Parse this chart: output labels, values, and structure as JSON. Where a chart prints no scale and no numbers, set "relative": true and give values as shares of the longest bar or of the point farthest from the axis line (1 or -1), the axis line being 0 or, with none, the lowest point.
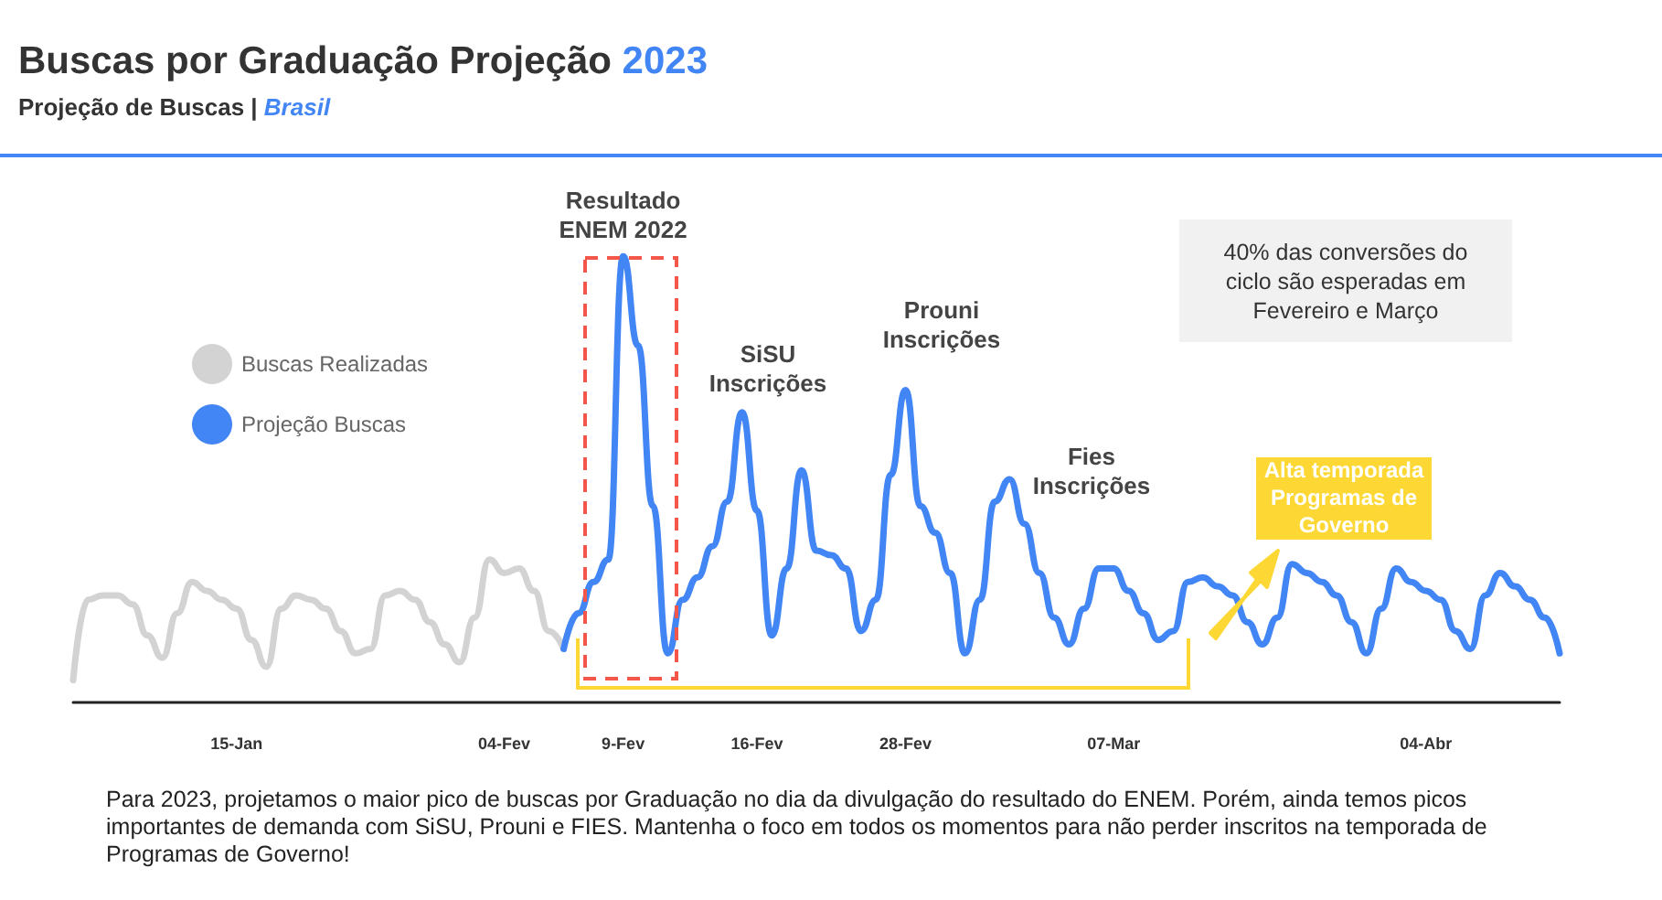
{
  "chart_data": {
    "type": "line",
    "title": "Buscas por Graduação Projeção 2023",
    "subtitle": "Projeção de Buscas | Brasil",
    "relative": true,
    "marker": "none",
    "grid": false,
    "legend": "left",
    "tick_labels": "x",
    "categories": [
      null,
      null,
      null,
      null,
      null,
      null,
      null,
      null,
      null,
      null,
      null,
      "15-Jan",
      null,
      null,
      null,
      null,
      null,
      null,
      null,
      null,
      null,
      null,
      null,
      null,
      null,
      null,
      null,
      null,
      null,
      "04-Fev",
      null,
      null,
      null,
      null,
      null,
      null,
      null,
      "9-Fev",
      null,
      null,
      null,
      null,
      null,
      null,
      null,
      null,
      "16-Fev",
      null,
      null,
      null,
      null,
      null,
      null,
      null,
      null,
      null,
      "28-Fev",
      null,
      null,
      null,
      null,
      null,
      null,
      null,
      null,
      null,
      null,
      null,
      null,
      null,
      "07-Mar",
      null,
      null,
      null,
      null,
      null,
      null,
      null,
      null,
      null,
      null,
      null,
      null,
      null,
      null,
      null,
      null,
      null,
      null,
      null,
      null,
      "04-Abr",
      null,
      null,
      null,
      null,
      null,
      null,
      null,
      null,
      null
    ],
    "series": [
      {
        "name": "Buscas Realizadas",
        "color": "#d3d3d3",
        "values": [
          0.05,
          0.23,
          0.24,
          0.24,
          0.22,
          0.15,
          0.1,
          0.2,
          0.27,
          0.25,
          0.23,
          0.21,
          0.14,
          0.08,
          0.21,
          0.24,
          0.23,
          0.21,
          0.16,
          0.11,
          0.12,
          0.24,
          0.25,
          0.23,
          0.18,
          0.13,
          0.09,
          0.19,
          0.32,
          0.29,
          0.3,
          0.25,
          0.16,
          0.12,
          null,
          null,
          null,
          null,
          null,
          null,
          null,
          null,
          null,
          null,
          null,
          null,
          null,
          null,
          null,
          null,
          null,
          null,
          null,
          null,
          null,
          null,
          null,
          null,
          null,
          null,
          null,
          null,
          null,
          null,
          null,
          null,
          null,
          null,
          null,
          null,
          null,
          null,
          null,
          null,
          null,
          null,
          null,
          null,
          null,
          null,
          null,
          null,
          null,
          null,
          null,
          null,
          null,
          null,
          null,
          null,
          null,
          null,
          null,
          null,
          null,
          null,
          null,
          null,
          null,
          null,
          null
        ]
      },
      {
        "name": "Projeção Buscas",
        "color": "#4285f4",
        "values": [
          null,
          null,
          null,
          null,
          null,
          null,
          null,
          null,
          null,
          null,
          null,
          null,
          null,
          null,
          null,
          null,
          null,
          null,
          null,
          null,
          null,
          null,
          null,
          null,
          null,
          null,
          null,
          null,
          null,
          null,
          null,
          null,
          null,
          0.12,
          0.2,
          0.27,
          0.32,
          1.0,
          0.8,
          0.44,
          0.11,
          0.23,
          0.28,
          0.35,
          0.45,
          0.65,
          0.43,
          0.15,
          0.3,
          0.52,
          0.34,
          0.33,
          0.3,
          0.16,
          0.23,
          0.51,
          0.7,
          0.44,
          0.38,
          0.29,
          0.11,
          0.23,
          0.45,
          0.5,
          0.4,
          0.29,
          0.19,
          0.13,
          0.21,
          0.3,
          0.3,
          0.25,
          0.2,
          0.14,
          0.16,
          0.27,
          0.28,
          0.26,
          0.24,
          0.18,
          0.13,
          0.19,
          0.31,
          0.29,
          0.27,
          0.24,
          0.18,
          0.11,
          0.21,
          0.3,
          0.27,
          0.25,
          0.23,
          0.16,
          0.12,
          0.24,
          0.29,
          0.26,
          0.23,
          0.19,
          0.11
        ]
      }
    ],
    "annotations": [
      {
        "text": "Resultado\nENEM 2022",
        "x": "9-Fev",
        "y": 1.0
      },
      "SiSU\nInscrições",
      "Prouni\nInscrições",
      "Fies\nInscrições",
      "40% das conversões do ciclo são esperadas em Fevereiro e Março",
      "Alta temporada\nProgramas de\nGoverno",
      "Para 2023, projetamos o maior pico de buscas por Graduação no dia da divulgação do resultado do ENEM. Porém, ainda temos picos importantes de demanda com SiSU, Prouni e FIES. Mantenha o foco em todos os momentos para não perder inscritos na temporada de Programas de Governo!"
    ]
  }
}
